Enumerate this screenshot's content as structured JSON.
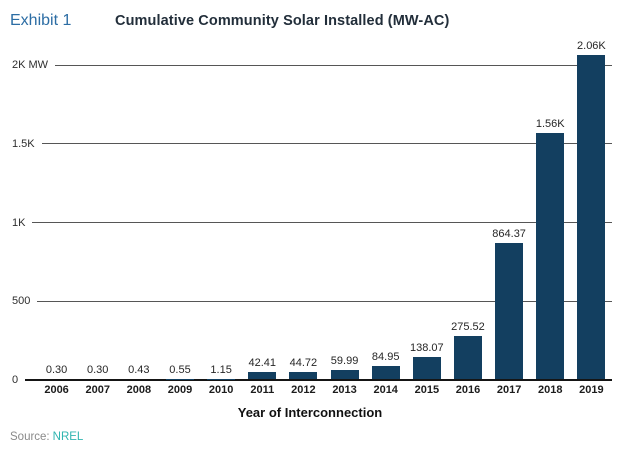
{
  "header": {
    "exhibit_label": "Exhibit 1"
  },
  "footer": {
    "source_label": "Source:",
    "source_link": "NREL"
  },
  "colors": {
    "bar": "#133F60",
    "exhibit_blue": "#2C6DA4",
    "title_dark": "#222E3A",
    "source_teal": "#30B5B0",
    "gridline": "#565656",
    "baseline": "#151515"
  },
  "chart_data": {
    "type": "bar",
    "title": "Cumulative Community Solar Installed (MW-AC)",
    "xlabel": "Year of Interconnection",
    "ylabel": "MW",
    "ylim": [
      0,
      2000
    ],
    "grid": true,
    "legend": "none",
    "categories": [
      "2006",
      "2007",
      "2008",
      "2009",
      "2010",
      "2011",
      "2012",
      "2013",
      "2014",
      "2015",
      "2016",
      "2017",
      "2018",
      "2019"
    ],
    "values": [
      0.3,
      0.3,
      0.43,
      0.55,
      1.15,
      42.41,
      44.72,
      59.99,
      84.95,
      138.07,
      275.52,
      864.37,
      1560,
      2060
    ],
    "value_labels": [
      "0.30",
      "0.30",
      "0.43",
      "0.55",
      "1.15",
      "42.41",
      "44.72",
      "59.99",
      "84.95",
      "138.07",
      "275.52",
      "864.37",
      "1.56K",
      "2.06K"
    ],
    "yticks": [
      {
        "value": 0,
        "label": "0"
      },
      {
        "value": 500,
        "label": "500"
      },
      {
        "value": 1000,
        "label": "1K"
      },
      {
        "value": 1500,
        "label": "1.5K"
      },
      {
        "value": 2000,
        "label": "2K MW"
      }
    ]
  }
}
